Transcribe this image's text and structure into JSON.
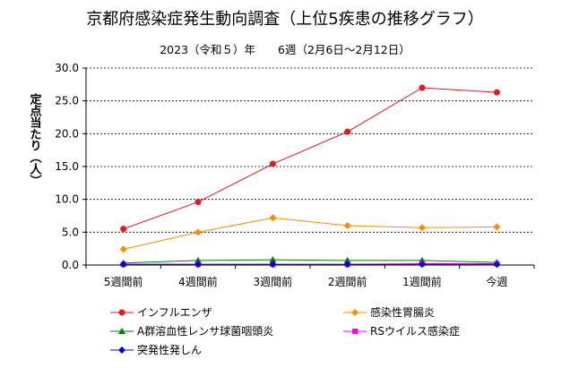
{
  "chart_data": {
    "type": "line",
    "title": "京都府感染症発生動向調査（上位5疾患の推移グラフ）",
    "subtitle": "2023（令和５）年　　6週（2月6日～2月12日）",
    "ylabel": "定点当たり（人）",
    "xlabel": "",
    "ylim": [
      0,
      30
    ],
    "yticks": [
      "0.0",
      "5.0",
      "10.0",
      "15.0",
      "20.0",
      "25.0",
      "30.0"
    ],
    "grid": true,
    "legend_position": "bottom",
    "categories": [
      "5週間前",
      "4週間前",
      "3週間前",
      "2週間前",
      "1週間前",
      "今週"
    ],
    "series": [
      {
        "name": "インフルエンザ",
        "color": "#e41a1c",
        "marker": "circle",
        "values": [
          5.5,
          9.6,
          15.4,
          20.3,
          27.0,
          26.3
        ]
      },
      {
        "name": "感染性胃腸炎",
        "color": "#ff8c00",
        "marker": "diamond",
        "values": [
          2.4,
          5.0,
          7.2,
          6.0,
          5.7,
          5.8
        ]
      },
      {
        "name": "A群溶血性レンサ球菌咽頭炎",
        "color": "#008000",
        "marker": "triangle",
        "values": [
          0.3,
          0.7,
          0.8,
          0.7,
          0.7,
          0.4
        ]
      },
      {
        "name": "RSウイルス感染症",
        "color": "#ff00ff",
        "marker": "square",
        "values": [
          0.1,
          0.1,
          0.1,
          0.1,
          0.2,
          0.2
        ]
      },
      {
        "name": "突発性発しん",
        "color": "#0000cd",
        "marker": "diamond",
        "values": [
          0.1,
          0.1,
          0.1,
          0.1,
          0.1,
          0.1
        ]
      }
    ]
  }
}
